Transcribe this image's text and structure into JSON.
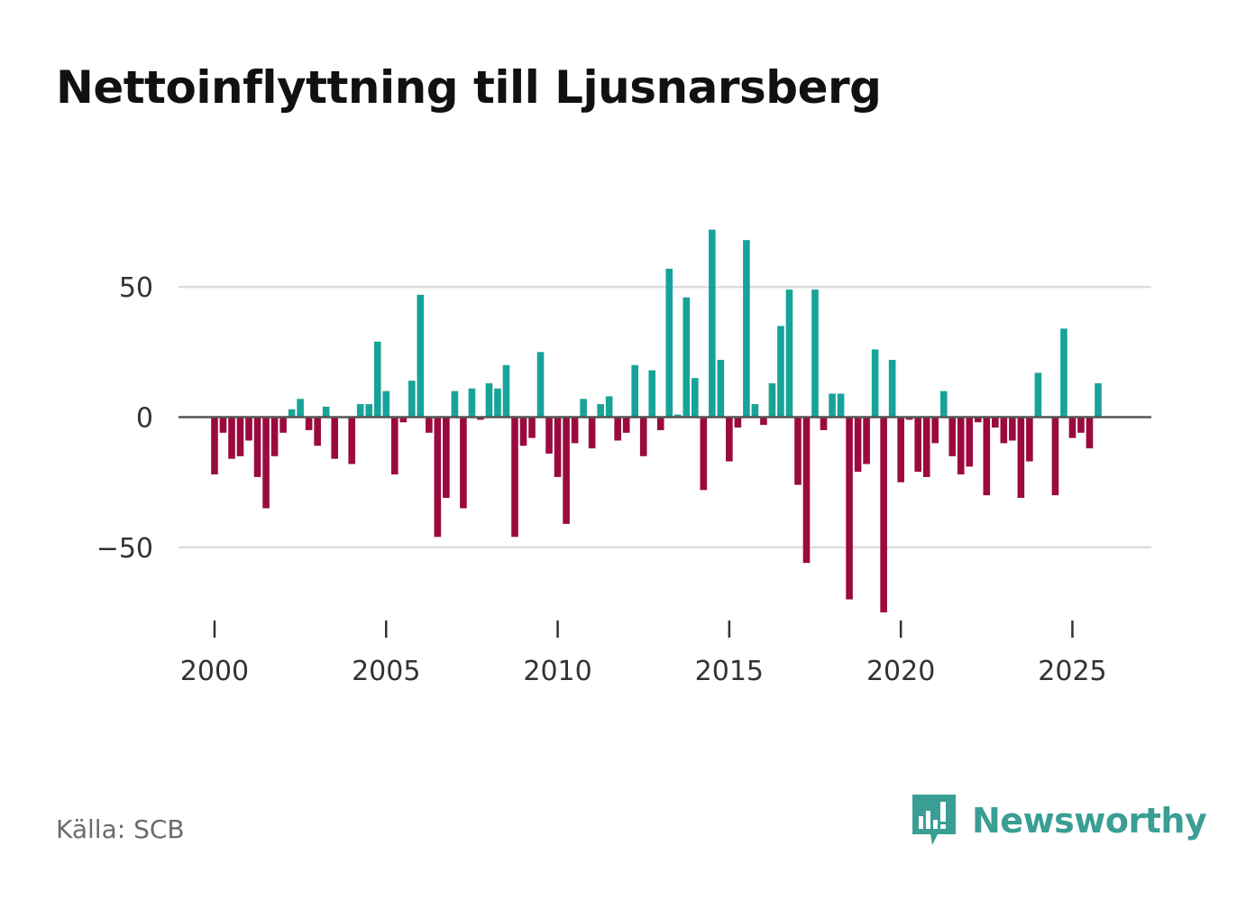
{
  "title": "Nettoinflyttning till Ljusnarsberg",
  "source": "Källa: SCB",
  "brand": {
    "name": "Newsworthy",
    "icon": "newsworthy-logo-icon"
  },
  "colors": {
    "positive": "#17a398",
    "negative": "#9b0a3f",
    "grid": "#dddddd",
    "zero": "#555555",
    "brand": "#3a9e95"
  },
  "chart_data": {
    "type": "bar",
    "title": "Nettoinflyttning till Ljusnarsberg",
    "xlabel": "",
    "ylabel": "",
    "x_ticks": [
      2000,
      2005,
      2010,
      2015,
      2020,
      2025
    ],
    "x_tick_labels": [
      "2000",
      "2005",
      "2010",
      "2015",
      "2020",
      "2025"
    ],
    "y_ticks": [
      50,
      0,
      -50
    ],
    "y_tick_labels": [
      "50",
      "0",
      "−50"
    ],
    "xlim": [
      1998.95,
      2027.3
    ],
    "ylim": [
      -84,
      84
    ],
    "grid": true,
    "start": 2000.0,
    "step": 0.25,
    "series": [
      {
        "name": "Nettoinflyttning",
        "values": [
          -22,
          -6,
          -16,
          -15,
          -9,
          -23,
          -35,
          -15,
          -6,
          3,
          7,
          -5,
          -11,
          4,
          -16,
          0,
          -18,
          5,
          5,
          29,
          10,
          -22,
          -2,
          14,
          47,
          -6,
          -46,
          -31,
          10,
          -35,
          11,
          -1,
          13,
          11,
          20,
          -46,
          -11,
          -8,
          25,
          -14,
          -23,
          -41,
          -10,
          7,
          -12,
          5,
          8,
          -9,
          -6,
          20,
          -15,
          18,
          -5,
          57,
          1,
          46,
          15,
          -28,
          72,
          22,
          -17,
          -4,
          68,
          5,
          -3,
          13,
          35,
          49,
          -26,
          -56,
          49,
          -5,
          9,
          9,
          -70,
          -21,
          -18,
          26,
          -75,
          22,
          -25,
          -1,
          -21,
          -23,
          -10,
          10,
          -15,
          -22,
          -19,
          -2,
          -30,
          -4,
          -10,
          -9,
          -31,
          -17,
          17,
          0,
          -30,
          34,
          -8,
          -6,
          -12,
          13
        ]
      }
    ]
  }
}
